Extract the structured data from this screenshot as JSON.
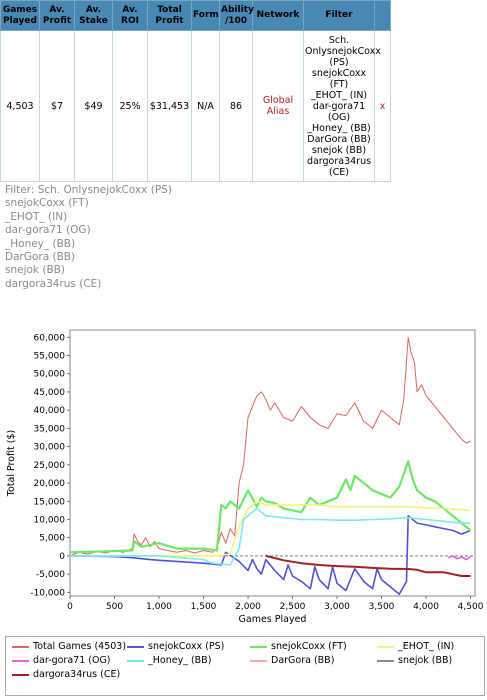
{
  "table": {
    "headers": [
      "Games Played",
      "Av. Profit",
      "Av. Stake",
      "Av. ROI",
      "Total Profit",
      "Form",
      "Ability /100",
      "Network",
      "Filter"
    ],
    "row": [
      "4,503",
      "$7",
      "$49",
      "25%",
      "$31,453",
      "N/A",
      "86",
      "Global Alias"
    ],
    "filter_lines": [
      "Sch.",
      "OnlysnejokCoxx",
      "(PS)",
      "snejokCoxx",
      "(FT)",
      "_EHOT_ (IN)",
      "dar-gora71",
      "(OG)",
      "_Honey_ (BB)",
      "DarGora (BB)",
      "snejok (BB)",
      "dargora34rus",
      "(CE)"
    ],
    "remove_glyph": "x"
  },
  "filter_text": [
    "Filter: Sch. OnlysnejokCoxx (PS)",
    "snejokCoxx (FT)",
    "_EHOT_ (IN)",
    "dar-gora71 (OG)",
    "_Honey_ (BB)",
    "DarGora (BB)",
    "snejok (BB)",
    "dargora34rus (CE)"
  ],
  "chart_data": {
    "type": "line",
    "xlabel": "Games Played",
    "ylabel": "Total Profit ($)",
    "xlim": [
      0,
      4550
    ],
    "ylim": [
      -11000,
      62000
    ],
    "xticks": [
      0,
      500,
      1000,
      1500,
      2000,
      2500,
      3000,
      3500,
      4000,
      4500
    ],
    "xtick_labels": [
      "0",
      "500",
      "1,000",
      "1,500",
      "2,000",
      "2,500",
      "3,000",
      "3,500",
      "4,000",
      "4,500"
    ],
    "yticks": [
      -10000,
      -5000,
      0,
      5000,
      10000,
      15000,
      20000,
      25000,
      30000,
      35000,
      40000,
      45000,
      50000,
      55000,
      60000
    ],
    "ytick_labels": [
      "-10,000",
      "-5,000",
      "0",
      "5,000",
      "10,000",
      "15,000",
      "20,000",
      "25,000",
      "30,000",
      "35,000",
      "40,000",
      "45,000",
      "50,000",
      "55,000",
      "60,000"
    ],
    "grid": false,
    "legend_position": "bottom",
    "series": [
      {
        "name": "Total Games (4503)",
        "color": "#e0655e",
        "width": 1,
        "x": [
          0,
          100,
          200,
          300,
          400,
          500,
          600,
          700,
          720,
          760,
          800,
          850,
          900,
          950,
          1000,
          1100,
          1200,
          1300,
          1400,
          1500,
          1600,
          1650,
          1700,
          1750,
          1800,
          1850,
          1900,
          1950,
          2000,
          2050,
          2100,
          2150,
          2200,
          2250,
          2300,
          2400,
          2500,
          2600,
          2700,
          2800,
          2900,
          3000,
          3100,
          3200,
          3300,
          3400,
          3500,
          3600,
          3700,
          3750,
          3800,
          3830,
          3870,
          3900,
          3950,
          4000,
          4100,
          4200,
          4300,
          4400,
          4450,
          4500
        ],
        "y": [
          0,
          1000,
          500,
          1200,
          800,
          1500,
          1000,
          2000,
          6000,
          4000,
          3000,
          5000,
          2500,
          4000,
          2000,
          1500,
          1000,
          1500,
          800,
          1500,
          1000,
          2000,
          6500,
          3500,
          7500,
          5500,
          20000,
          25000,
          38000,
          41000,
          44000,
          45000,
          43000,
          40000,
          42000,
          38000,
          37000,
          41000,
          38000,
          36000,
          35000,
          39000,
          38500,
          42000,
          37000,
          35000,
          40000,
          38000,
          36000,
          43000,
          60000,
          56000,
          53000,
          45000,
          47000,
          44000,
          41000,
          38000,
          35000,
          32000,
          31000,
          31453
        ]
      },
      {
        "name": "snejokCoxx (PS)",
        "color": "#5252d6",
        "width": 1.6,
        "x": [
          0,
          500,
          700,
          900,
          1000,
          1200,
          1500,
          1700,
          1750,
          1900,
          2000,
          2050,
          2100,
          2150,
          2200,
          2300,
          2400,
          2450,
          2500,
          2600,
          2700,
          2750,
          2800,
          2900,
          2950,
          3000,
          3100,
          3200,
          3300,
          3400,
          3450,
          3500,
          3600,
          3700,
          3780,
          3800,
          3850,
          3900,
          4000,
          4100,
          4200,
          4300,
          4400,
          4500
        ],
        "y": [
          0,
          -200,
          -500,
          -1000,
          -1200,
          -1500,
          -2000,
          -2500,
          1000,
          -1500,
          -4000,
          -1000,
          -3500,
          -5000,
          -1000,
          -4000,
          -6500,
          -2500,
          -5500,
          -7000,
          -9000,
          -3000,
          -6500,
          -9000,
          -3000,
          -7500,
          -9500,
          -3500,
          -7000,
          -9000,
          -3500,
          -6500,
          -8500,
          -10500,
          -7000,
          11000,
          10000,
          9000,
          8500,
          8000,
          7500,
          7000,
          6000,
          7000
        ]
      },
      {
        "name": "snejokCoxx (FT)",
        "color": "#6ee866",
        "width": 2.2,
        "x": [
          0,
          700,
          720,
          800,
          900,
          1000,
          1200,
          1500,
          1650,
          1700,
          1750,
          1800,
          1900,
          2000,
          2100,
          2150,
          2200,
          2300,
          2400,
          2500,
          2600,
          2700,
          2800,
          2900,
          3000,
          3100,
          3150,
          3200,
          3300,
          3400,
          3500,
          3600,
          3700,
          3800,
          3850,
          3900,
          4000,
          4100,
          4200,
          4300,
          4400,
          4500
        ],
        "y": [
          1000,
          1500,
          4000,
          2500,
          3000,
          3500,
          2000,
          2000,
          1500,
          14000,
          13000,
          15000,
          13000,
          18000,
          13500,
          16000,
          15000,
          14500,
          13000,
          12500,
          12000,
          16000,
          14000,
          15000,
          16000,
          21000,
          18000,
          22000,
          20000,
          18000,
          17000,
          16000,
          19000,
          26000,
          21000,
          18000,
          16000,
          15000,
          13000,
          11000,
          9000,
          7000
        ]
      },
      {
        "name": "_EHOT_ (IN)",
        "color": "#f5f27a",
        "width": 1.6,
        "x": [
          0,
          1600,
          1700,
          1800,
          1900,
          2000,
          2100,
          2200,
          2500,
          2800,
          3000,
          3200,
          3500,
          3800,
          4000,
          4200,
          4500
        ],
        "y": [
          0,
          0,
          200,
          500,
          8000,
          13000,
          15000,
          14000,
          14000,
          14000,
          13500,
          13500,
          13500,
          13500,
          13200,
          13000,
          12500
        ]
      },
      {
        "name": "dar-gora71 (OG)",
        "color": "#e85fe0",
        "width": 1.6,
        "x": [
          4250,
          4300,
          4350,
          4400,
          4450,
          4500
        ],
        "y": [
          -500,
          0,
          -800,
          -300,
          -1000,
          -200
        ]
      },
      {
        "name": "_Honey_ (BB)",
        "color": "#7ee8ee",
        "width": 1.6,
        "x": [
          0,
          500,
          1000,
          1500,
          1600,
          1800,
          1900,
          1950,
          2000,
          2050,
          2100,
          2200,
          2400,
          2600,
          2800,
          3000,
          3200,
          3400,
          3600,
          3800,
          4000,
          4200,
          4400,
          4500
        ],
        "y": [
          0,
          0,
          0,
          -1000,
          -2000,
          -2500,
          2000,
          10000,
          11000,
          12000,
          13000,
          11000,
          10500,
          10000,
          10000,
          9800,
          9800,
          10000,
          10200,
          10500,
          10000,
          9500,
          9000,
          9000
        ]
      },
      {
        "name": "DarGora (BB)",
        "color": "#f5aaaa",
        "width": 1.6,
        "x": [],
        "y": []
      },
      {
        "name": "snejok (BB)",
        "color": "#8a8a8a",
        "width": 1.6,
        "x": [],
        "y": []
      },
      {
        "name": "dargora34rus (CE)",
        "color": "#a41f1f",
        "width": 2,
        "x": [
          2200,
          2400,
          2600,
          2800,
          3000,
          3200,
          3400,
          3600,
          3800,
          3900,
          4000,
          4200,
          4400,
          4500
        ],
        "y": [
          0,
          -1200,
          -2000,
          -2500,
          -2800,
          -3000,
          -3300,
          -3500,
          -3600,
          -3800,
          -4500,
          -4500,
          -5500,
          -5500
        ]
      }
    ]
  }
}
